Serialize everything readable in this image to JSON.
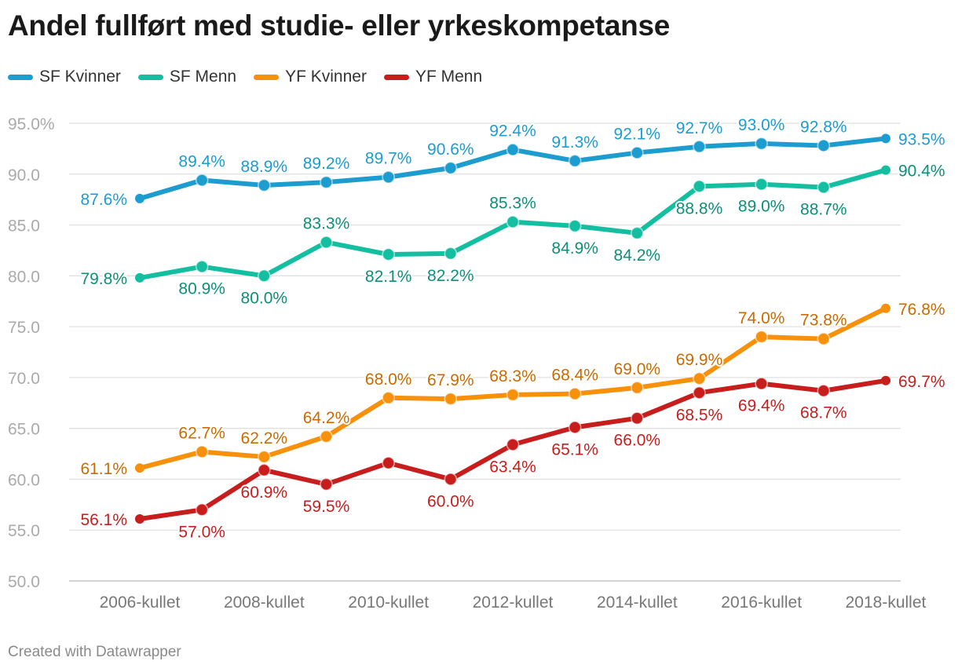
{
  "chart_data": {
    "type": "line",
    "title": "Andel fullført med studie- eller yrkeskompetanse",
    "categories": [
      "2006-kullet",
      "2007-kullet",
      "2008-kullet",
      "2009-kullet",
      "2010-kullet",
      "2011-kullet",
      "2012-kullet",
      "2013-kullet",
      "2014-kullet",
      "2015-kullet",
      "2016-kullet",
      "2017-kullet",
      "2018-kullet"
    ],
    "x_tick_labels": [
      "2006-kullet",
      "2008-kullet",
      "2010-kullet",
      "2012-kullet",
      "2014-kullet",
      "2016-kullet",
      "2018-kullet"
    ],
    "y_ticks": [
      "95.0%",
      "90.0",
      "85.0",
      "80.0",
      "75.0",
      "70.0",
      "65.0",
      "60.0",
      "55.0",
      "50.0"
    ],
    "ylim": [
      50,
      95
    ],
    "grid": true,
    "legend_position": "top-left",
    "series": [
      {
        "name": "SF Kvinner",
        "color": "#1d9ccf",
        "values": [
          87.6,
          89.4,
          88.9,
          89.2,
          89.7,
          90.6,
          92.4,
          91.3,
          92.1,
          92.7,
          93.0,
          92.8,
          93.5
        ],
        "labels": [
          "87.6%",
          "89.4%",
          "88.9%",
          "89.2%",
          "89.7%",
          "90.6%",
          "92.4%",
          "91.3%",
          "92.1%",
          "92.7%",
          "93.0%",
          "92.8%",
          "93.5%"
        ]
      },
      {
        "name": "SF Menn",
        "color": "#13bfa0",
        "label_color": "#0d8f78",
        "values": [
          79.8,
          80.9,
          80.0,
          83.3,
          82.1,
          82.2,
          85.3,
          84.9,
          84.2,
          88.8,
          89.0,
          88.7,
          90.4
        ],
        "labels": [
          "79.8%",
          "80.9%",
          "80.0%",
          "83.3%",
          "82.1%",
          "82.2%",
          "85.3%",
          "84.9%",
          "84.2%",
          "88.8%",
          "89.0%",
          "88.7%",
          "90.4%"
        ]
      },
      {
        "name": "YF Kvinner",
        "color": "#f7900a",
        "label_color": "#c96b00",
        "values": [
          61.1,
          62.7,
          62.2,
          64.2,
          68.0,
          67.9,
          68.3,
          68.4,
          69.0,
          69.9,
          74.0,
          73.8,
          76.8
        ],
        "labels": [
          "61.1%",
          "62.7%",
          "62.2%",
          "64.2%",
          "68.0%",
          "67.9%",
          "68.3%",
          "68.4%",
          "69.0%",
          "69.9%",
          "74.0%",
          "73.8%",
          "76.8%"
        ]
      },
      {
        "name": "YF Menn",
        "color": "#c71e1d",
        "label_color": "#c71e1d",
        "values": [
          56.1,
          57.0,
          60.9,
          59.5,
          61.6,
          60.0,
          63.4,
          65.1,
          66.0,
          68.5,
          69.4,
          68.7,
          69.7
        ],
        "labels": [
          "56.1%",
          "57.0%",
          "60.9%",
          "59.5%",
          "",
          "60.0%",
          "63.4%",
          "65.1%",
          "66.0%",
          "68.5%",
          "69.4%",
          "68.7%",
          "69.7%"
        ]
      }
    ]
  },
  "footer": "Created with Datawrapper"
}
